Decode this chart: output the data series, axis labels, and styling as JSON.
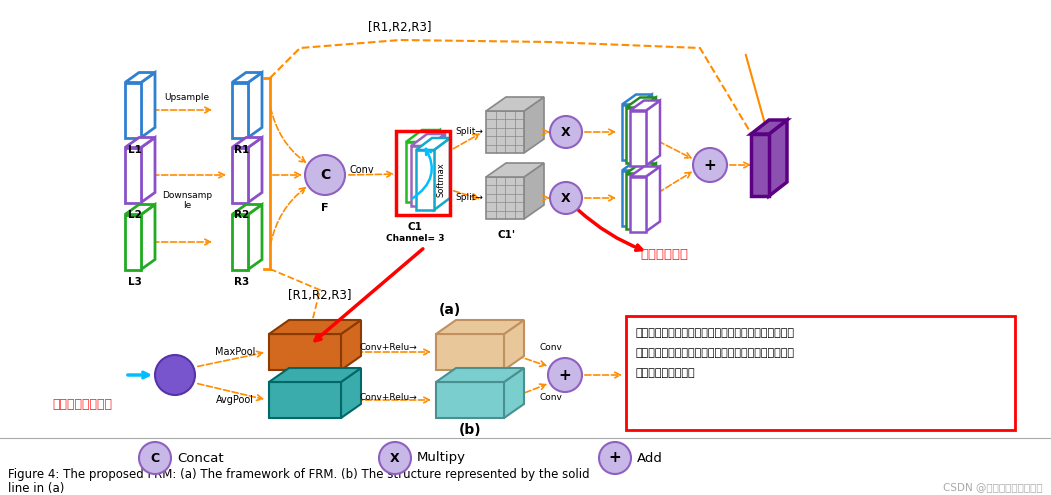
{
  "fig_width": 10.51,
  "fig_height": 4.95,
  "dpi": 100,
  "bg_color": "#ffffff",
  "caption_line1": "Figure 4: The proposed FRM: (a) The framework of FRM. (b) The structure represented by the solid",
  "caption_line2": "line in (a)",
  "csdn_text": "CSDN @一名不想学习的学渣",
  "orange": "#FF8C00",
  "red": "#FF0000",
  "blue": "#3080D0",
  "purple": "#8B50C8",
  "green": "#22AA22",
  "light_blue_arrow": "#00BFFF",
  "gray_block": "#B8B8B8",
  "orange_block": "#D2691E",
  "peach_block": "#E8C89A",
  "teal_block": "#3AACAC",
  "light_teal": "#7ACECE",
  "purple_final": "#8B50B0",
  "node_face": "#C8B8E8",
  "node_edge": "#9060C0",
  "text_red": "#FF2020"
}
